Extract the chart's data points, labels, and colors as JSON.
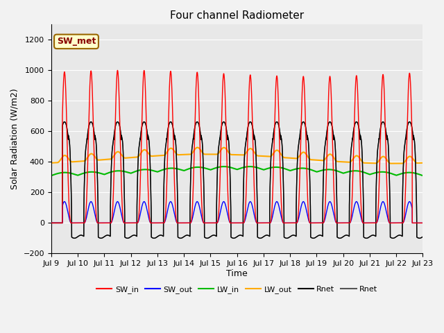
{
  "title": "Four channel Radiometer",
  "xlabel": "Time",
  "ylabel": "Solar Radiation (W/m2)",
  "ylim": [
    -200,
    1300
  ],
  "yticks": [
    -200,
    0,
    200,
    400,
    600,
    800,
    1000,
    1200
  ],
  "x_tick_labels": [
    "Jul 9",
    "Jul 10",
    "Jul 11",
    "Jul 12",
    "Jul 13",
    "Jul 14",
    "Jul 15",
    "Jul 16",
    "Jul 17",
    "Jul 18",
    "Jul 19",
    "Jul 20",
    "Jul 21",
    "Jul 22",
    "Jul 23"
  ],
  "annotation_text": "SW_met",
  "annotation_bg": "#ffffcc",
  "annotation_border": "#996600",
  "annotation_text_color": "#880000",
  "plot_bg_color": "#e8e8e8",
  "fig_bg_color": "#f2f2f2",
  "grid_color": "#ffffff",
  "series_SW_in_color": "#ff0000",
  "series_SW_out_color": "#0000ff",
  "series_LW_in_color": "#00bb00",
  "series_LW_out_color": "#ffaa00",
  "series_Rnet1_color": "#000000",
  "series_Rnet2_color": "#555555",
  "lw_thin": 1.0,
  "lw_thick": 1.5
}
